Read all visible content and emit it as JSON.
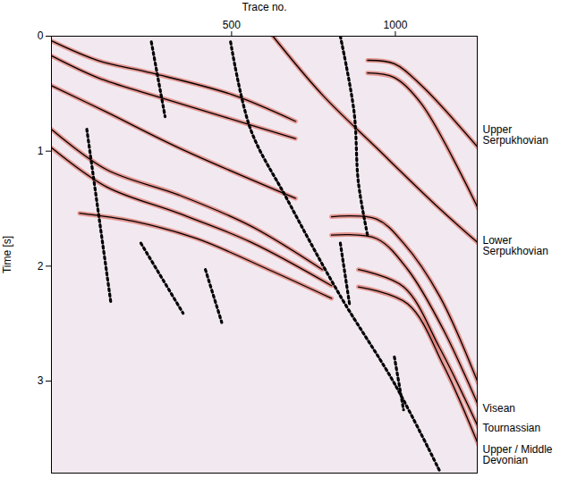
{
  "chart_data": {
    "type": "line",
    "x_label": "Trace no.",
    "y_label": "Time [s]",
    "xlim": [
      -50,
      1250
    ],
    "xticks": [
      500,
      1000
    ],
    "ylim": [
      0,
      3.8
    ],
    "yticks": [
      0,
      1,
      2,
      3
    ],
    "grid": false,
    "series": [
      {
        "color": "#000000",
        "line_style": "solid",
        "x": [
          -50,
          91,
          255,
          503,
          695
        ],
        "values": [
          0.04,
          0.21,
          0.32,
          0.51,
          0.74
        ]
      },
      {
        "color": "#000000",
        "line_style": "solid",
        "x": [
          -50,
          91,
          255,
          475,
          695
        ],
        "values": [
          0.17,
          0.36,
          0.51,
          0.7,
          0.89
        ]
      },
      {
        "color": "#000000",
        "line_style": "solid",
        "x": [
          -50,
          118,
          338,
          695
        ],
        "values": [
          0.43,
          0.66,
          0.97,
          1.41
        ]
      },
      {
        "color": "#000000",
        "line_style": "solid",
        "x": [
          915,
          997,
          1080,
          1253
        ],
        "values": [
          0.21,
          0.24,
          0.43,
          0.97
        ]
      },
      {
        "color": "#000000",
        "line_style": "solid",
        "x": [
          915,
          997,
          1080,
          1253
        ],
        "values": [
          0.32,
          0.36,
          0.59,
          1.5
        ]
      },
      {
        "color": "#000000",
        "line_style": "solid",
        "x": [
          626,
          777,
          942,
          1135,
          1253
        ],
        "values": [
          0,
          0.51,
          0.97,
          1.5,
          1.8
        ]
      },
      {
        "color": "#000000",
        "line_style": "solid",
        "x": [
          -50,
          118,
          338,
          558,
          777
        ],
        "values": [
          0.81,
          1.16,
          1.38,
          1.65,
          2.03
        ]
      },
      {
        "color": "#000000",
        "line_style": "solid",
        "x": [
          -50,
          118,
          338,
          558,
          805
        ],
        "values": [
          0.97,
          1.31,
          1.54,
          1.79,
          2.17
        ]
      },
      {
        "color": "#000000",
        "line_style": "solid",
        "x": [
          36,
          201,
          393,
          613,
          805
        ],
        "values": [
          1.54,
          1.61,
          1.76,
          2.03,
          2.28
        ]
      },
      {
        "color": "#000000",
        "line_style": "solid",
        "x": [
          805,
          942,
          1025,
          1135,
          1253
        ],
        "values": [
          1.57,
          1.59,
          1.8,
          2.26,
          3.02
        ]
      },
      {
        "color": "#000000",
        "line_style": "solid",
        "x": [
          805,
          942,
          1038,
          1148,
          1253
        ],
        "values": [
          1.73,
          1.76,
          2.03,
          2.56,
          3.21
        ]
      },
      {
        "color": "#000000",
        "line_style": "solid",
        "x": [
          887,
          1025,
          1135,
          1253
        ],
        "values": [
          2.03,
          2.18,
          2.71,
          3.4
        ]
      },
      {
        "color": "#000000",
        "line_style": "solid",
        "x": [
          887,
          1038,
          1148,
          1253
        ],
        "values": [
          2.18,
          2.33,
          2.87,
          3.55
        ]
      },
      {
        "color": "#000000",
        "line_style": "dotted",
        "x": [
          255,
          297
        ],
        "values": [
          0.05,
          0.7
        ]
      },
      {
        "color": "#000000",
        "line_style": "dotted",
        "x": [
          58,
          132
        ],
        "values": [
          0.81,
          2.33
        ]
      },
      {
        "color": "#000000",
        "line_style": "dotted",
        "x": [
          223,
          352
        ],
        "values": [
          1.8,
          2.41
        ]
      },
      {
        "color": "#000000",
        "line_style": "dotted",
        "x": [
          420,
          470
        ],
        "values": [
          2.03,
          2.49
        ]
      },
      {
        "color": "#000000",
        "line_style": "dotted",
        "x": [
          497,
          558,
          668,
          832,
          997,
          1135
        ],
        "values": [
          0.05,
          0.81,
          1.41,
          2.26,
          3.02,
          3.78
        ]
      },
      {
        "color": "#000000",
        "line_style": "dotted",
        "x": [
          832,
          874,
          887,
          915
        ],
        "values": [
          0,
          0.66,
          1.27,
          1.73
        ]
      },
      {
        "color": "#000000",
        "line_style": "dotted",
        "x": [
          832,
          860
        ],
        "values": [
          1.8,
          2.33
        ]
      },
      {
        "color": "#000000",
        "line_style": "dotted",
        "x": [
          997,
          1025
        ],
        "values": [
          2.79,
          3.25
        ]
      }
    ],
    "annotations": [
      {
        "text": "Upper Serpukhovian",
        "y": 0.86
      },
      {
        "text": "Lower Serpukhovian",
        "y": 1.82
      },
      {
        "text": "Visean",
        "y": 3.24
      },
      {
        "text": "Tournassian",
        "y": 3.41
      },
      {
        "text": "Upper / Middle Devonian",
        "y": 3.64
      }
    ]
  }
}
